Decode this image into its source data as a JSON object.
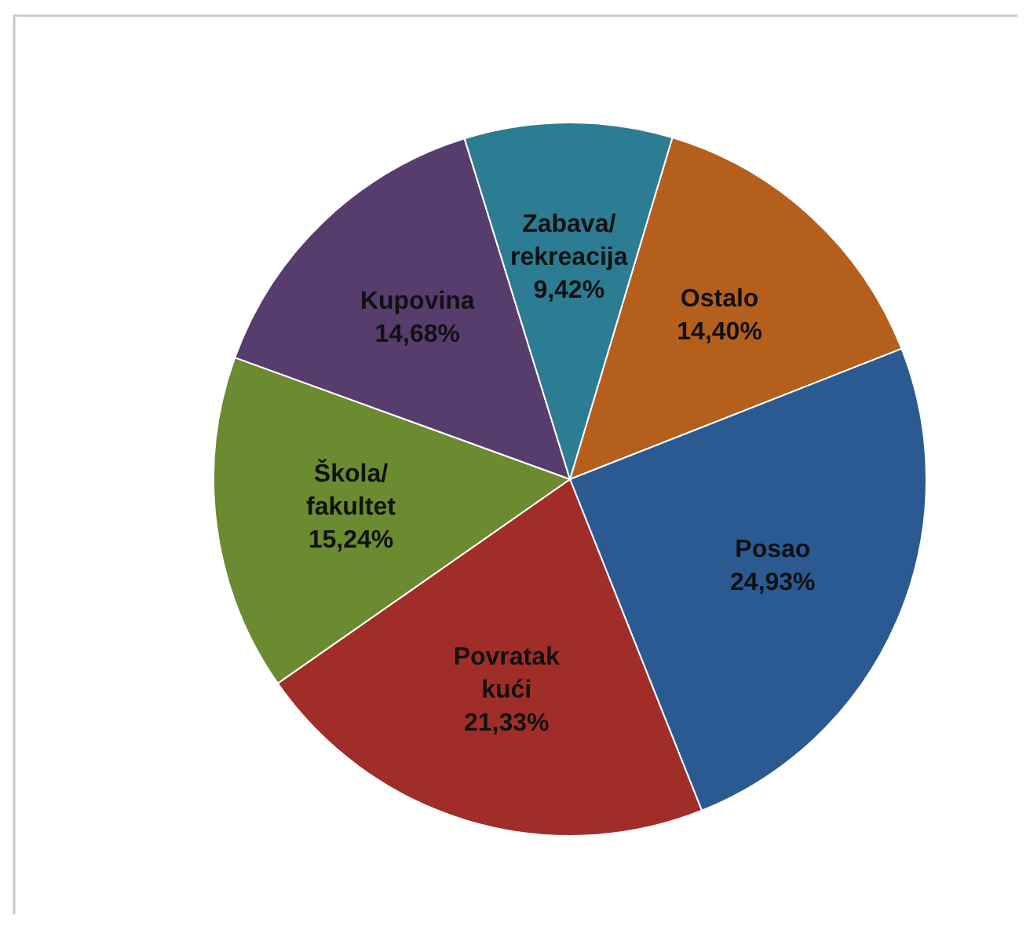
{
  "chart_data": {
    "type": "pie",
    "categories": [
      "Ostalo",
      "Posao",
      "Povratak kući",
      "Škola/fakultet",
      "Kupovina",
      "Zabava/rekreacija"
    ],
    "values": [
      14.4,
      24.93,
      21.33,
      15.24,
      14.68,
      9.42
    ],
    "colors": [
      "#b55f1d",
      "#2b5a93",
      "#a12d29",
      "#6c8a2f",
      "#573c6e",
      "#2c7c93"
    ],
    "value_labels": [
      "14,40%",
      "24,93%",
      "21,33%",
      "15,24%",
      "14,68%",
      "9,42%"
    ]
  }
}
